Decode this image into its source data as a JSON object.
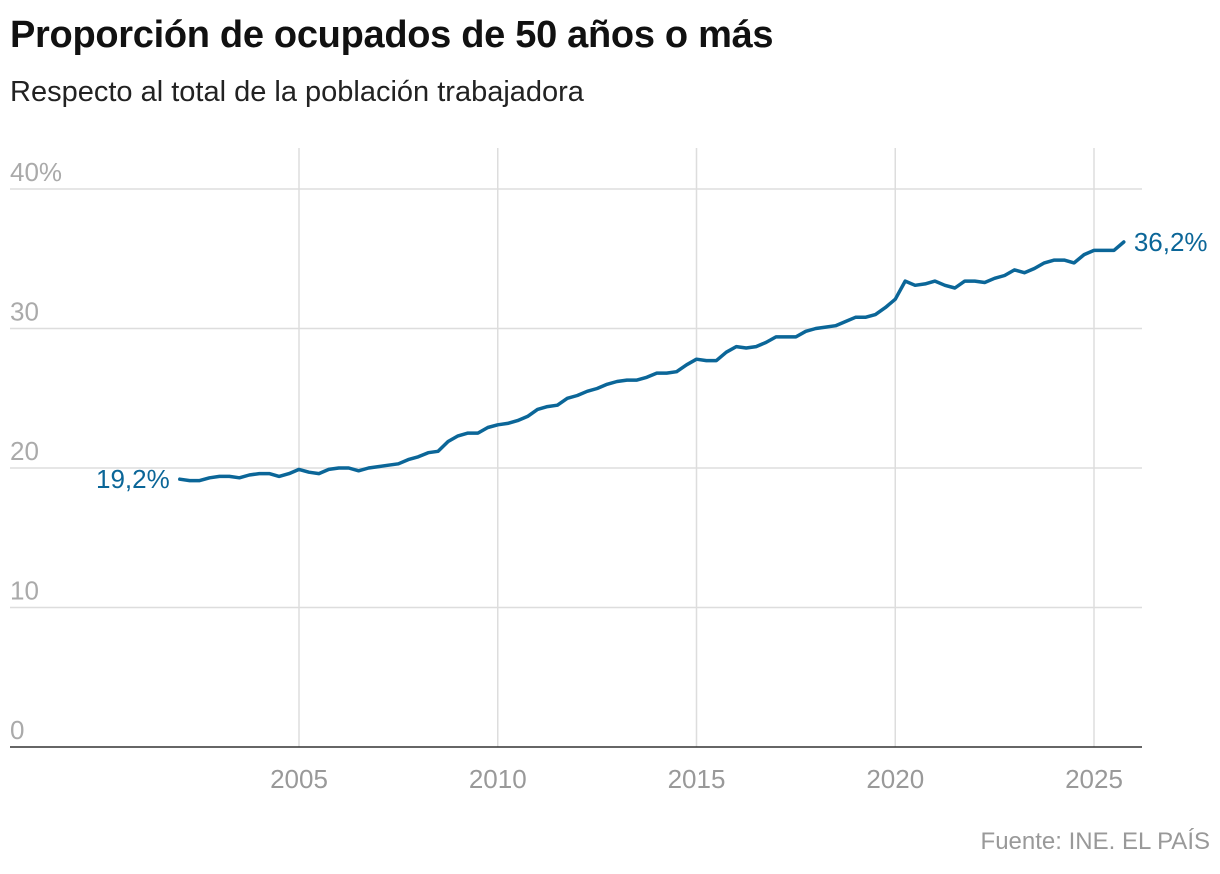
{
  "title": "Proporción de ocupados de 50 años o más",
  "subtitle": "Respecto al total de la población trabajadora",
  "source": "Fuente: INE. EL PAÍS",
  "colors": {
    "line": "#0b6698",
    "grid": "#dddddd",
    "axis": "#333333",
    "tick": "#aaaaaa"
  },
  "chart_data": {
    "type": "line",
    "title": "Proporción de ocupados de 50 años o más",
    "subtitle": "Respecto al total de la población trabajadora",
    "xlabel": "",
    "ylabel": "",
    "ylim": [
      0,
      40
    ],
    "xlim": [
      2002.0,
      2026.2
    ],
    "grid": true,
    "y_ticks": [
      {
        "value": 40,
        "label": "40%"
      },
      {
        "value": 30,
        "label": "30"
      },
      {
        "value": 20,
        "label": "20"
      },
      {
        "value": 10,
        "label": "10"
      },
      {
        "value": 0,
        "label": "0"
      }
    ],
    "x_ticks": [
      {
        "value": 2005,
        "label": "2005"
      },
      {
        "value": 2010,
        "label": "2010"
      },
      {
        "value": 2015,
        "label": "2015"
      },
      {
        "value": 2020,
        "label": "2020"
      },
      {
        "value": 2025,
        "label": "2025"
      }
    ],
    "annotations": [
      {
        "label": "19,2%",
        "at": "start"
      },
      {
        "label": "36,2%",
        "at": "end"
      }
    ],
    "series": [
      {
        "x": [
          2002.0,
          2002.25,
          2002.5,
          2002.75,
          2003.0,
          2003.25,
          2003.5,
          2003.75,
          2004.0,
          2004.25,
          2004.5,
          2004.75,
          2005.0,
          2005.25,
          2005.5,
          2005.75,
          2006.0,
          2006.25,
          2006.5,
          2006.75,
          2007.0,
          2007.25,
          2007.5,
          2007.75,
          2008.0,
          2008.25,
          2008.5,
          2008.75,
          2009.0,
          2009.25,
          2009.5,
          2009.75,
          2010.0,
          2010.25,
          2010.5,
          2010.75,
          2011.0,
          2011.25,
          2011.5,
          2011.75,
          2012.0,
          2012.25,
          2012.5,
          2012.75,
          2013.0,
          2013.25,
          2013.5,
          2013.75,
          2014.0,
          2014.25,
          2014.5,
          2014.75,
          2015.0,
          2015.25,
          2015.5,
          2015.75,
          2016.0,
          2016.25,
          2016.5,
          2016.75,
          2017.0,
          2017.25,
          2017.5,
          2017.75,
          2018.0,
          2018.25,
          2018.5,
          2018.75,
          2019.0,
          2019.25,
          2019.5,
          2019.75,
          2020.0,
          2020.25,
          2020.5,
          2020.75,
          2021.0,
          2021.25,
          2021.5,
          2021.75,
          2022.0,
          2022.25,
          2022.5,
          2022.75,
          2023.0,
          2023.25,
          2023.5,
          2023.75,
          2024.0,
          2024.25,
          2024.5,
          2024.75,
          2025.0,
          2025.25,
          2025.5,
          2025.75
        ],
        "values": [
          19.2,
          19.1,
          19.1,
          19.3,
          19.4,
          19.4,
          19.3,
          19.5,
          19.6,
          19.6,
          19.4,
          19.6,
          19.9,
          19.7,
          19.6,
          19.9,
          20.0,
          20.0,
          19.8,
          20.0,
          20.1,
          20.2,
          20.3,
          20.6,
          20.8,
          21.1,
          21.2,
          21.9,
          22.3,
          22.5,
          22.5,
          22.9,
          23.1,
          23.2,
          23.4,
          23.7,
          24.2,
          24.4,
          24.5,
          25.0,
          25.2,
          25.5,
          25.7,
          26.0,
          26.2,
          26.3,
          26.3,
          26.5,
          26.8,
          26.8,
          26.9,
          27.4,
          27.8,
          27.7,
          27.7,
          28.3,
          28.7,
          28.6,
          28.7,
          29.0,
          29.4,
          29.4,
          29.4,
          29.8,
          30.0,
          30.1,
          30.2,
          30.5,
          30.8,
          30.8,
          31.0,
          31.5,
          32.1,
          33.4,
          33.1,
          33.2,
          33.4,
          33.1,
          32.9,
          33.4,
          33.4,
          33.3,
          33.6,
          33.8,
          34.2,
          34.0,
          34.3,
          34.7,
          34.9,
          34.9,
          34.7,
          35.3,
          35.6,
          35.6,
          35.6,
          36.2
        ]
      }
    ]
  }
}
